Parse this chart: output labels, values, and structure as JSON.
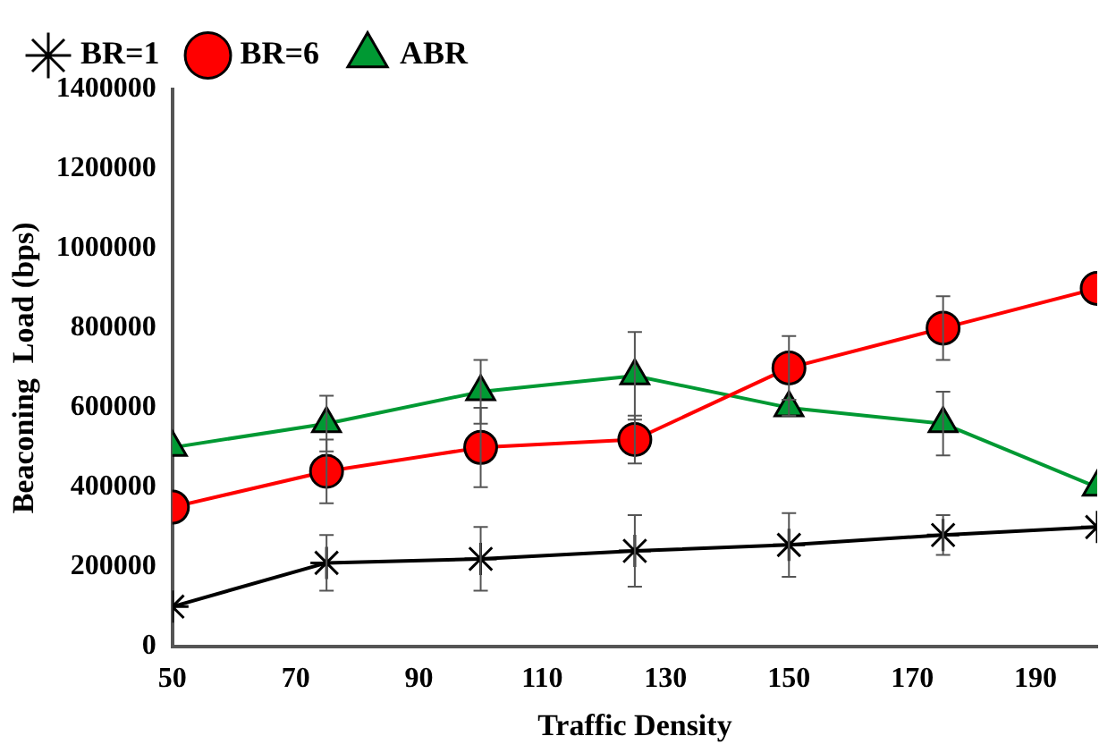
{
  "chart_data": {
    "type": "line",
    "xlabel": "Traffic Density",
    "ylabel": "Beaconing  Load (bps)",
    "x": [
      50,
      75,
      100,
      125,
      150,
      175,
      200
    ],
    "xlim": [
      50,
      200
    ],
    "xticks": [
      50,
      70,
      90,
      110,
      130,
      150,
      170,
      190
    ],
    "ylim": [
      0,
      1400000
    ],
    "yticks": [
      0,
      200000,
      400000,
      600000,
      800000,
      1000000,
      1200000,
      1400000
    ],
    "grid": false,
    "legend": "top left",
    "line_style": "solid",
    "series": [
      {
        "name": "BR=1",
        "color": "#000000",
        "marker": "cross",
        "values": [
          100000,
          210000,
          220000,
          240000,
          255000,
          280000,
          300000
        ],
        "errors": [
          null,
          70000,
          80000,
          90000,
          80000,
          50000,
          null
        ]
      },
      {
        "name": "BR=6",
        "color": "#ff0000",
        "marker": "circle",
        "values": [
          350000,
          440000,
          500000,
          520000,
          700000,
          800000,
          900000
        ],
        "errors": [
          null,
          80000,
          100000,
          60000,
          80000,
          80000,
          null
        ]
      },
      {
        "name": "ABR",
        "color": "#009933",
        "marker": "triangle",
        "values": [
          500000,
          560000,
          640000,
          680000,
          600000,
          560000,
          400000
        ],
        "errors": [
          null,
          70000,
          80000,
          110000,
          20000,
          80000,
          null
        ]
      }
    ]
  }
}
